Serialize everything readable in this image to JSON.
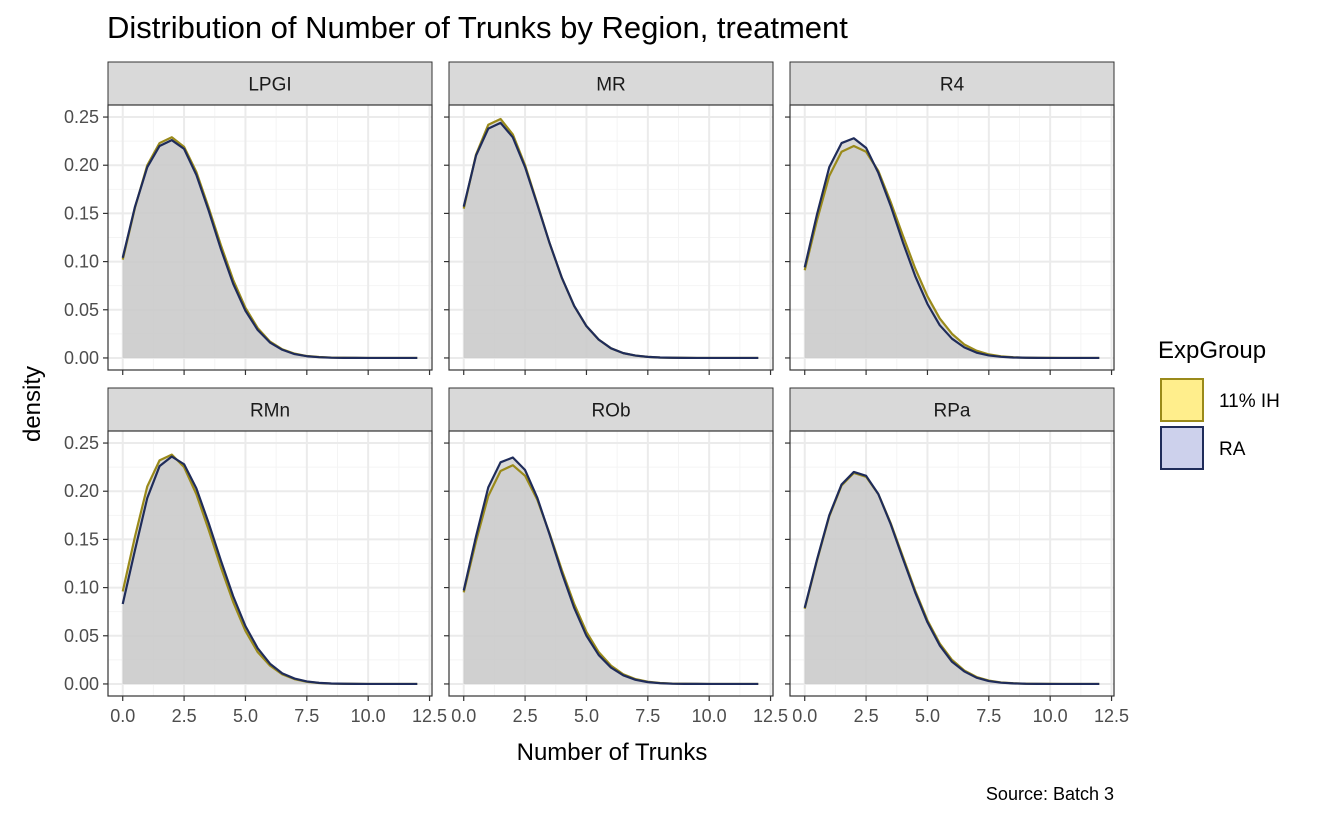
{
  "title": "Distribution of Number of Trunks by Region, treatment",
  "caption": "Source: Batch 3",
  "colors": {
    "strip_fill": "#d9d9d9",
    "panel_border": "#333333",
    "grid_major": "#ebebeb",
    "grid_minor": "#f4f4f4",
    "density_fill": "#cccccc"
  },
  "chart_data": {
    "type": "area",
    "subtype": "density",
    "facet_by": "Region",
    "xlabel": "Number of Trunks",
    "ylabel": "density",
    "xlim": [
      0,
      12
    ],
    "ylim": [
      0,
      0.25
    ],
    "x_ticks": [
      0,
      2.5,
      5,
      7.5,
      10,
      12.5
    ],
    "x_tick_labels": [
      "0.0",
      "2.5",
      "5.0",
      "7.5",
      "10.0",
      "12.5"
    ],
    "y_ticks": [
      0,
      0.05,
      0.1,
      0.15,
      0.2,
      0.25
    ],
    "y_tick_labels": [
      "0.00",
      "0.05",
      "0.10",
      "0.15",
      "0.20",
      "0.25"
    ],
    "grid": true,
    "legend": {
      "title": "ExpGroup",
      "position": "right",
      "entries": [
        {
          "name": "11% IH",
          "fill": "#ffee8c",
          "line": "#9a8a1a"
        },
        {
          "name": "RA",
          "fill": "#cdd1ec",
          "line": "#1f2c5a"
        }
      ]
    },
    "x": [
      0,
      0.5,
      1,
      1.5,
      2,
      2.5,
      3,
      3.5,
      4,
      4.5,
      5,
      5.5,
      6,
      6.5,
      7,
      7.5,
      8,
      8.5,
      9,
      9.5,
      10,
      10.5,
      11,
      11.5,
      12
    ],
    "panels": [
      {
        "label": "LPGI",
        "series": [
          {
            "name": "11% IH",
            "values": [
              0.102,
              0.156,
              0.2,
              0.223,
              0.229,
              0.219,
              0.193,
              0.156,
              0.117,
              0.081,
              0.052,
              0.031,
              0.017,
              0.009,
              0.0045,
              0.002,
              0.001,
              0.0004,
              0.0002,
              0.0001,
              3e-05,
              1e-05,
              0,
              0,
              0
            ]
          },
          {
            "name": "RA",
            "values": [
              0.104,
              0.157,
              0.198,
              0.22,
              0.226,
              0.217,
              0.19,
              0.153,
              0.113,
              0.077,
              0.049,
              0.029,
              0.016,
              0.0085,
              0.004,
              0.0018,
              0.0008,
              0.0003,
              0.0001,
              5e-05,
              2e-05,
              1e-05,
              0,
              0,
              0
            ]
          }
        ]
      },
      {
        "label": "MR",
        "series": [
          {
            "name": "11% IH",
            "values": [
              0.155,
              0.211,
              0.242,
              0.248,
              0.232,
              0.2,
              0.16,
              0.119,
              0.083,
              0.054,
              0.033,
              0.019,
              0.01,
              0.005,
              0.0025,
              0.0011,
              0.0005,
              0.0002,
              0.0001,
              4e-05,
              1e-05,
              0,
              0,
              0,
              0
            ]
          },
          {
            "name": "RA",
            "values": [
              0.157,
              0.21,
              0.238,
              0.244,
              0.229,
              0.198,
              0.159,
              0.119,
              0.083,
              0.054,
              0.033,
              0.019,
              0.01,
              0.005,
              0.0025,
              0.0011,
              0.0005,
              0.0002,
              0.0001,
              4e-05,
              1e-05,
              0,
              0,
              0,
              0
            ]
          }
        ]
      },
      {
        "label": "R4",
        "series": [
          {
            "name": "11% IH",
            "values": [
              0.091,
              0.143,
              0.189,
              0.214,
              0.22,
              0.214,
              0.194,
              0.162,
              0.127,
              0.093,
              0.064,
              0.041,
              0.025,
              0.014,
              0.0075,
              0.0037,
              0.0017,
              0.0007,
              0.0003,
              0.0001,
              5e-05,
              2e-05,
              0,
              0,
              0
            ]
          },
          {
            "name": "RA",
            "values": [
              0.094,
              0.149,
              0.198,
              0.223,
              0.228,
              0.218,
              0.192,
              0.158,
              0.12,
              0.085,
              0.056,
              0.034,
              0.02,
              0.011,
              0.0055,
              0.0026,
              0.0012,
              0.0005,
              0.0002,
              0.0001,
              3e-05,
              1e-05,
              0,
              0,
              0
            ]
          }
        ]
      },
      {
        "label": "RMn",
        "series": [
          {
            "name": "11% IH",
            "values": [
              0.096,
              0.153,
              0.205,
              0.232,
              0.238,
              0.225,
              0.197,
              0.16,
              0.121,
              0.085,
              0.055,
              0.033,
              0.019,
              0.01,
              0.005,
              0.0023,
              0.001,
              0.0004,
              0.0002,
              0.0001,
              3e-05,
              1e-05,
              0,
              0,
              0
            ]
          },
          {
            "name": "RA",
            "values": [
              0.083,
              0.139,
              0.193,
              0.226,
              0.236,
              0.228,
              0.203,
              0.167,
              0.128,
              0.091,
              0.06,
              0.037,
              0.021,
              0.011,
              0.0056,
              0.0026,
              0.0011,
              0.0005,
              0.0002,
              0.0001,
              3e-05,
              1e-05,
              0,
              0,
              0
            ]
          }
        ]
      },
      {
        "label": "ROb",
        "series": [
          {
            "name": "11% IH",
            "values": [
              0.095,
              0.148,
              0.195,
              0.221,
              0.227,
              0.216,
              0.191,
              0.156,
              0.118,
              0.083,
              0.054,
              0.033,
              0.019,
              0.01,
              0.005,
              0.0023,
              0.001,
              0.0004,
              0.0002,
              0.0001,
              3e-05,
              1e-05,
              0,
              0,
              0
            ]
          },
          {
            "name": "RA",
            "values": [
              0.097,
              0.153,
              0.204,
              0.23,
              0.235,
              0.222,
              0.193,
              0.155,
              0.115,
              0.079,
              0.05,
              0.03,
              0.017,
              0.009,
              0.0043,
              0.0019,
              0.0008,
              0.0003,
              0.0001,
              5e-05,
              2e-05,
              1e-05,
              0,
              0,
              0
            ]
          }
        ]
      },
      {
        "label": "RPa",
        "series": [
          {
            "name": "11% IH",
            "values": [
              0.078,
              0.128,
              0.174,
              0.206,
              0.219,
              0.215,
              0.197,
              0.167,
              0.132,
              0.097,
              0.066,
              0.042,
              0.025,
              0.014,
              0.0072,
              0.0035,
              0.0016,
              0.0007,
              0.0003,
              0.0001,
              5e-05,
              2e-05,
              0,
              0,
              0
            ]
          },
          {
            "name": "RA",
            "values": [
              0.079,
              0.129,
              0.175,
              0.207,
              0.22,
              0.216,
              0.197,
              0.166,
              0.13,
              0.095,
              0.064,
              0.04,
              0.023,
              0.013,
              0.0065,
              0.003,
              0.0013,
              0.0006,
              0.0002,
              0.0001,
              4e-05,
              1e-05,
              0,
              0,
              0
            ]
          }
        ]
      }
    ]
  }
}
